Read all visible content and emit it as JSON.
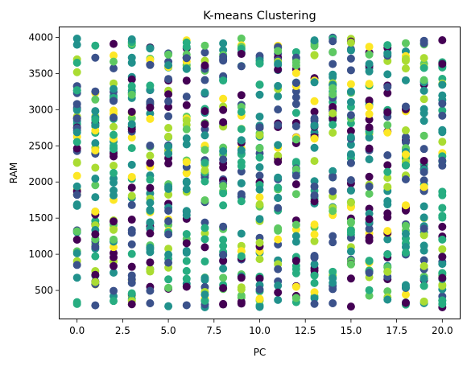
{
  "chart_data": {
    "type": "scatter",
    "title": "K-means Clustering",
    "xlabel": "PC",
    "ylabel": "RAM",
    "xlim": [
      -1,
      21
    ],
    "ylim": [
      100,
      4150
    ],
    "x_ticks": [
      0.0,
      2.5,
      5.0,
      7.5,
      10.0,
      12.5,
      15.0,
      17.5,
      20.0
    ],
    "x_tick_labels": [
      "0.0",
      "2.5",
      "5.0",
      "7.5",
      "10.0",
      "12.5",
      "15.0",
      "17.5",
      "20.0"
    ],
    "y_ticks": [
      500,
      1000,
      1500,
      2000,
      2500,
      3000,
      3500,
      4000
    ],
    "y_tick_labels": [
      "500",
      "1000",
      "1500",
      "2000",
      "2500",
      "3000",
      "3500",
      "4000"
    ],
    "grid": false,
    "legend": "none",
    "x_values": [
      0,
      1,
      2,
      3,
      4,
      5,
      6,
      7,
      8,
      9,
      10,
      11,
      12,
      13,
      14,
      15,
      16,
      17,
      18,
      19,
      20
    ],
    "y_range": [
      260,
      4000
    ],
    "points_per_column": 48,
    "series": [
      {
        "color": "#440154",
        "share": 0.14
      },
      {
        "color": "#3b528b",
        "share": 0.2
      },
      {
        "color": "#21918c",
        "share": 0.2
      },
      {
        "color": "#27ad81",
        "share": 0.17
      },
      {
        "color": "#5ec962",
        "share": 0.1
      },
      {
        "color": "#aadc32",
        "share": 0.09
      },
      {
        "color": "#fde725",
        "share": 0.1
      }
    ]
  }
}
